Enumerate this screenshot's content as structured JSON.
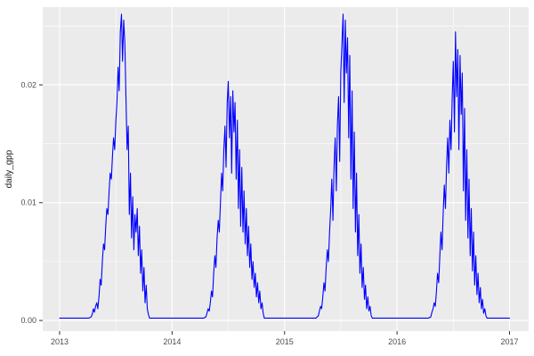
{
  "figure": {
    "background": "#FFFFFF",
    "panel_background": "#EBEBEB",
    "grid_major_color": "#FFFFFF",
    "grid_minor_color": "#FFFFFF",
    "tick_mark_color": "#333333",
    "tick_label_color": "#4D4D4D",
    "axis_title_color": "#1A1A1A",
    "line_color": "#0000FF"
  },
  "chart_data": {
    "type": "line",
    "title": "",
    "xlabel": "",
    "ylabel": "daily_gpp",
    "grid": true,
    "legend": "none",
    "xlim": [
      2012.85,
      2017.17
    ],
    "ylim": [
      -0.0009,
      0.0266
    ],
    "x_ticks": [
      2013,
      2014,
      2015,
      2016,
      2017
    ],
    "x_tick_labels": [
      "2013",
      "2014",
      "2015",
      "2016",
      "2017"
    ],
    "x_minor_ticks": [
      2013.5,
      2014.5,
      2015.5,
      2016.5
    ],
    "y_ticks": [
      0.0,
      0.01,
      0.02
    ],
    "y_tick_labels": [
      "0.00",
      "0.01",
      "0.02"
    ],
    "y_minor_ticks": [
      0.005,
      0.015,
      0.025
    ],
    "series": [
      {
        "name": "daily_gpp",
        "color": "#0000FF",
        "points": [
          [
            2013.0,
            0.0002
          ],
          [
            2013.1,
            0.0002
          ],
          [
            2013.2,
            0.0002
          ],
          [
            2013.26,
            0.0002
          ],
          [
            2013.28,
            0.0003
          ],
          [
            2013.29,
            0.0005
          ],
          [
            2013.3,
            0.001
          ],
          [
            2013.31,
            0.0007
          ],
          [
            2013.32,
            0.0012
          ],
          [
            2013.33,
            0.0015
          ],
          [
            2013.34,
            0.001
          ],
          [
            2013.35,
            0.002
          ],
          [
            2013.36,
            0.0035
          ],
          [
            2013.37,
            0.003
          ],
          [
            2013.38,
            0.005
          ],
          [
            2013.39,
            0.0065
          ],
          [
            2013.4,
            0.006
          ],
          [
            2013.41,
            0.008
          ],
          [
            2013.42,
            0.0095
          ],
          [
            2013.43,
            0.009
          ],
          [
            2013.44,
            0.011
          ],
          [
            2013.45,
            0.0125
          ],
          [
            2013.46,
            0.012
          ],
          [
            2013.47,
            0.014
          ],
          [
            2013.48,
            0.0155
          ],
          [
            2013.49,
            0.0145
          ],
          [
            2013.5,
            0.017
          ],
          [
            2013.51,
            0.0185
          ],
          [
            2013.52,
            0.0215
          ],
          [
            2013.53,
            0.0195
          ],
          [
            2013.54,
            0.0245
          ],
          [
            2013.55,
            0.026
          ],
          [
            2013.56,
            0.022
          ],
          [
            2013.57,
            0.0255
          ],
          [
            2013.58,
            0.0235
          ],
          [
            2013.59,
            0.019
          ],
          [
            2013.6,
            0.0145
          ],
          [
            2013.61,
            0.0165
          ],
          [
            2013.62,
            0.009
          ],
          [
            2013.63,
            0.0125
          ],
          [
            2013.64,
            0.007
          ],
          [
            2013.65,
            0.0105
          ],
          [
            2013.66,
            0.006
          ],
          [
            2013.67,
            0.009
          ],
          [
            2013.68,
            0.0075
          ],
          [
            2013.69,
            0.0095
          ],
          [
            2013.7,
            0.0055
          ],
          [
            2013.71,
            0.008
          ],
          [
            2013.72,
            0.004
          ],
          [
            2013.73,
            0.006
          ],
          [
            2013.74,
            0.0025
          ],
          [
            2013.75,
            0.0045
          ],
          [
            2013.76,
            0.0015
          ],
          [
            2013.77,
            0.003
          ],
          [
            2013.78,
            0.001
          ],
          [
            2013.79,
            0.0005
          ],
          [
            2013.8,
            0.0002
          ],
          [
            2013.9,
            0.0002
          ],
          [
            2014.0,
            0.0002
          ],
          [
            2014.1,
            0.0002
          ],
          [
            2014.2,
            0.0002
          ],
          [
            2014.28,
            0.0002
          ],
          [
            2014.3,
            0.0003
          ],
          [
            2014.31,
            0.0006
          ],
          [
            2014.32,
            0.001
          ],
          [
            2014.33,
            0.0008
          ],
          [
            2014.34,
            0.0015
          ],
          [
            2014.35,
            0.0025
          ],
          [
            2014.36,
            0.002
          ],
          [
            2014.37,
            0.004
          ],
          [
            2014.38,
            0.0055
          ],
          [
            2014.39,
            0.0045
          ],
          [
            2014.4,
            0.007
          ],
          [
            2014.41,
            0.0085
          ],
          [
            2014.42,
            0.0075
          ],
          [
            2014.43,
            0.01
          ],
          [
            2014.44,
            0.0125
          ],
          [
            2014.45,
            0.011
          ],
          [
            2014.46,
            0.0145
          ],
          [
            2014.47,
            0.0165
          ],
          [
            2014.48,
            0.013
          ],
          [
            2014.49,
            0.0185
          ],
          [
            2014.5,
            0.0203
          ],
          [
            2014.51,
            0.0155
          ],
          [
            2014.52,
            0.019
          ],
          [
            2014.53,
            0.0125
          ],
          [
            2014.54,
            0.0195
          ],
          [
            2014.55,
            0.016
          ],
          [
            2014.56,
            0.0185
          ],
          [
            2014.57,
            0.012
          ],
          [
            2014.58,
            0.017
          ],
          [
            2014.59,
            0.0095
          ],
          [
            2014.6,
            0.0145
          ],
          [
            2014.61,
            0.008
          ],
          [
            2014.62,
            0.013
          ],
          [
            2014.63,
            0.0075
          ],
          [
            2014.64,
            0.011
          ],
          [
            2014.65,
            0.0065
          ],
          [
            2014.66,
            0.0095
          ],
          [
            2014.67,
            0.0055
          ],
          [
            2014.68,
            0.008
          ],
          [
            2014.69,
            0.0045
          ],
          [
            2014.7,
            0.0065
          ],
          [
            2014.71,
            0.0035
          ],
          [
            2014.72,
            0.005
          ],
          [
            2014.73,
            0.0028
          ],
          [
            2014.74,
            0.004
          ],
          [
            2014.75,
            0.002
          ],
          [
            2014.76,
            0.0032
          ],
          [
            2014.77,
            0.0015
          ],
          [
            2014.78,
            0.0025
          ],
          [
            2014.79,
            0.001
          ],
          [
            2014.8,
            0.0015
          ],
          [
            2014.81,
            0.0006
          ],
          [
            2014.82,
            0.0002
          ],
          [
            2014.9,
            0.0002
          ],
          [
            2015.0,
            0.0002
          ],
          [
            2015.1,
            0.0002
          ],
          [
            2015.2,
            0.0002
          ],
          [
            2015.28,
            0.0002
          ],
          [
            2015.3,
            0.0004
          ],
          [
            2015.31,
            0.0008
          ],
          [
            2015.32,
            0.0012
          ],
          [
            2015.33,
            0.001
          ],
          [
            2015.34,
            0.002
          ],
          [
            2015.35,
            0.0032
          ],
          [
            2015.36,
            0.0025
          ],
          [
            2015.37,
            0.0045
          ],
          [
            2015.38,
            0.006
          ],
          [
            2015.39,
            0.005
          ],
          [
            2015.4,
            0.0075
          ],
          [
            2015.41,
            0.0095
          ],
          [
            2015.42,
            0.012
          ],
          [
            2015.43,
            0.0085
          ],
          [
            2015.44,
            0.013
          ],
          [
            2015.45,
            0.0155
          ],
          [
            2015.46,
            0.011
          ],
          [
            2015.47,
            0.0165
          ],
          [
            2015.48,
            0.019
          ],
          [
            2015.49,
            0.0135
          ],
          [
            2015.5,
            0.021
          ],
          [
            2015.51,
            0.0235
          ],
          [
            2015.52,
            0.026
          ],
          [
            2015.53,
            0.0185
          ],
          [
            2015.54,
            0.0255
          ],
          [
            2015.55,
            0.021
          ],
          [
            2015.56,
            0.024
          ],
          [
            2015.57,
            0.0155
          ],
          [
            2015.58,
            0.0225
          ],
          [
            2015.59,
            0.012
          ],
          [
            2015.6,
            0.0195
          ],
          [
            2015.61,
            0.0095
          ],
          [
            2015.62,
            0.016
          ],
          [
            2015.63,
            0.0075
          ],
          [
            2015.64,
            0.0125
          ],
          [
            2015.65,
            0.0055
          ],
          [
            2015.66,
            0.009
          ],
          [
            2015.67,
            0.004
          ],
          [
            2015.68,
            0.0065
          ],
          [
            2015.69,
            0.0028
          ],
          [
            2015.7,
            0.0045
          ],
          [
            2015.71,
            0.0018
          ],
          [
            2015.72,
            0.003
          ],
          [
            2015.73,
            0.001
          ],
          [
            2015.74,
            0.002
          ],
          [
            2015.75,
            0.0008
          ],
          [
            2015.76,
            0.0012
          ],
          [
            2015.77,
            0.0004
          ],
          [
            2015.78,
            0.0002
          ],
          [
            2015.9,
            0.0002
          ],
          [
            2016.0,
            0.0002
          ],
          [
            2016.1,
            0.0002
          ],
          [
            2016.2,
            0.0002
          ],
          [
            2016.28,
            0.0002
          ],
          [
            2016.3,
            0.0003
          ],
          [
            2016.31,
            0.0007
          ],
          [
            2016.32,
            0.001
          ],
          [
            2016.33,
            0.0015
          ],
          [
            2016.34,
            0.0012
          ],
          [
            2016.35,
            0.0025
          ],
          [
            2016.36,
            0.004
          ],
          [
            2016.37,
            0.0032
          ],
          [
            2016.38,
            0.0055
          ],
          [
            2016.39,
            0.0075
          ],
          [
            2016.4,
            0.006
          ],
          [
            2016.41,
            0.009
          ],
          [
            2016.42,
            0.0115
          ],
          [
            2016.43,
            0.0095
          ],
          [
            2016.44,
            0.013
          ],
          [
            2016.45,
            0.0155
          ],
          [
            2016.46,
            0.0125
          ],
          [
            2016.47,
            0.017
          ],
          [
            2016.48,
            0.0145
          ],
          [
            2016.49,
            0.019
          ],
          [
            2016.5,
            0.022
          ],
          [
            2016.51,
            0.016
          ],
          [
            2016.52,
            0.0245
          ],
          [
            2016.53,
            0.019
          ],
          [
            2016.54,
            0.023
          ],
          [
            2016.55,
            0.0145
          ],
          [
            2016.56,
            0.0225
          ],
          [
            2016.57,
            0.0175
          ],
          [
            2016.58,
            0.021
          ],
          [
            2016.59,
            0.011
          ],
          [
            2016.6,
            0.018
          ],
          [
            2016.61,
            0.0085
          ],
          [
            2016.62,
            0.0145
          ],
          [
            2016.63,
            0.007
          ],
          [
            2016.64,
            0.012
          ],
          [
            2016.65,
            0.0055
          ],
          [
            2016.66,
            0.0095
          ],
          [
            2016.67,
            0.0042
          ],
          [
            2016.68,
            0.0075
          ],
          [
            2016.69,
            0.003
          ],
          [
            2016.7,
            0.0055
          ],
          [
            2016.71,
            0.0022
          ],
          [
            2016.72,
            0.004
          ],
          [
            2016.73,
            0.0015
          ],
          [
            2016.74,
            0.0028
          ],
          [
            2016.75,
            0.001
          ],
          [
            2016.76,
            0.0018
          ],
          [
            2016.77,
            0.0006
          ],
          [
            2016.78,
            0.001
          ],
          [
            2016.79,
            0.0004
          ],
          [
            2016.8,
            0.0002
          ],
          [
            2016.9,
            0.0002
          ],
          [
            2017.0,
            0.0002
          ]
        ]
      }
    ]
  }
}
